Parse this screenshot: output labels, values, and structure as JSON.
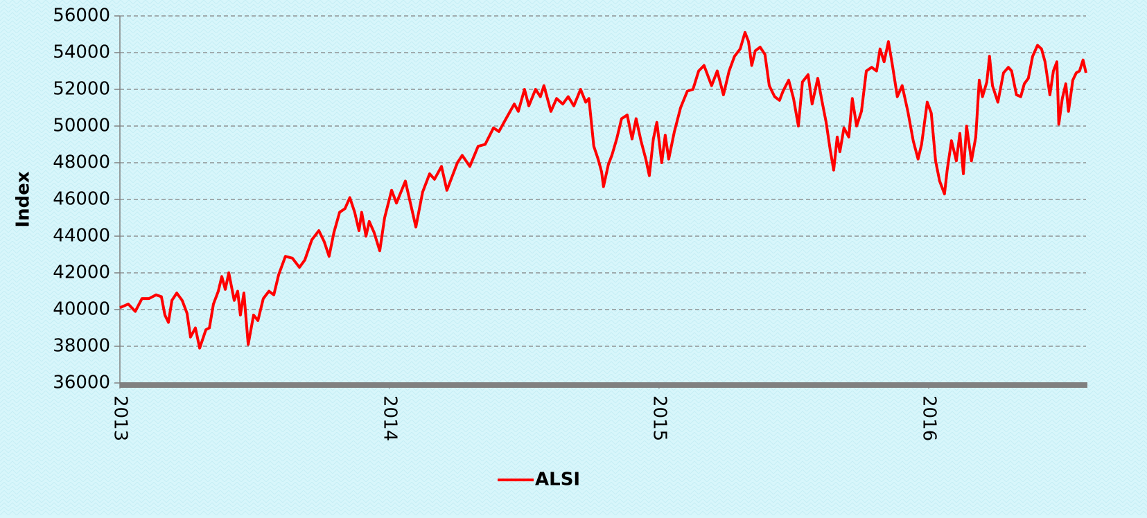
{
  "chart_data": {
    "type": "line",
    "y_label": "Index",
    "x": [
      2013.0,
      2013.031,
      2013.057,
      2013.082,
      2013.108,
      2013.134,
      2013.154,
      2013.167,
      2013.18,
      2013.193,
      2013.211,
      2013.231,
      2013.249,
      2013.262,
      2013.28,
      2013.296,
      2013.319,
      2013.332,
      2013.347,
      2013.365,
      2013.378,
      2013.391,
      2013.404,
      2013.424,
      2013.437,
      2013.447,
      2013.46,
      2013.476,
      2013.496,
      2013.512,
      2013.532,
      2013.553,
      2013.571,
      2013.589,
      2013.614,
      2013.64,
      2013.666,
      2013.686,
      2013.712,
      2013.738,
      2013.758,
      2013.776,
      2013.794,
      2013.815,
      2013.835,
      2013.853,
      2013.871,
      2013.887,
      2013.897,
      2013.913,
      2013.925,
      2013.943,
      2013.964,
      2013.982,
      2014.008,
      2014.026,
      2014.059,
      2014.098,
      2014.123,
      2014.149,
      2014.167,
      2014.193,
      2014.213,
      2014.252,
      2014.27,
      2014.298,
      2014.329,
      2014.355,
      2014.386,
      2014.406,
      2014.44,
      2014.463,
      2014.478,
      2014.501,
      2014.517,
      2014.542,
      2014.56,
      2014.573,
      2014.599,
      2014.62,
      2014.643,
      2014.663,
      2014.684,
      2014.709,
      2014.728,
      2014.74,
      2014.758,
      2014.774,
      2014.787,
      2014.794,
      2014.812,
      2014.825,
      2014.843,
      2014.861,
      2014.882,
      2014.9,
      2014.915,
      2014.933,
      2014.951,
      2014.964,
      2014.979,
      2014.992,
      2015.01,
      2015.023,
      2015.036,
      2015.057,
      2015.08,
      2015.105,
      2015.126,
      2015.147,
      2015.167,
      2015.195,
      2015.216,
      2015.239,
      2015.26,
      2015.28,
      2015.301,
      2015.319,
      2015.332,
      2015.344,
      2015.357,
      2015.375,
      2015.393,
      2015.409,
      2015.429,
      2015.447,
      2015.46,
      2015.481,
      2015.499,
      2015.517,
      2015.532,
      2015.553,
      2015.568,
      2015.589,
      2015.604,
      2015.62,
      2015.635,
      2015.648,
      2015.661,
      2015.671,
      2015.686,
      2015.704,
      2015.717,
      2015.733,
      2015.751,
      2015.769,
      2015.789,
      2015.807,
      2015.82,
      2015.835,
      2015.851,
      2015.866,
      2015.884,
      2015.902,
      2015.923,
      2015.943,
      2015.961,
      2015.974,
      2015.995,
      2016.01,
      2016.026,
      2016.041,
      2016.059,
      2016.069,
      2016.085,
      2016.103,
      2016.116,
      2016.129,
      2016.141,
      2016.159,
      2016.175,
      2016.188,
      2016.2,
      2016.216,
      2016.226,
      2016.237,
      2016.257,
      2016.278,
      2016.296,
      2016.308,
      2016.326,
      2016.342,
      2016.355,
      2016.37,
      2016.386,
      2016.404,
      2016.419,
      2016.432,
      2016.45,
      2016.463,
      2016.476,
      2016.483,
      2016.496,
      2016.509,
      2016.519,
      2016.535,
      2016.548,
      2016.56,
      2016.573,
      2016.584
    ],
    "series": [
      {
        "name": "ALSI",
        "color": "#ff0000",
        "values": [
          40100,
          40300,
          39900,
          40600,
          40600,
          40800,
          40700,
          39700,
          39300,
          40500,
          40900,
          40500,
          39800,
          38500,
          39000,
          37900,
          38900,
          39000,
          40300,
          41000,
          41800,
          41100,
          42000,
          40500,
          41000,
          39700,
          40900,
          38100,
          39700,
          39400,
          40600,
          41000,
          40800,
          41900,
          42900,
          42800,
          42300,
          42700,
          43800,
          44300,
          43700,
          42900,
          44200,
          45300,
          45500,
          46100,
          45300,
          44300,
          45300,
          44000,
          44800,
          44200,
          43200,
          45000,
          46500,
          45800,
          47000,
          44500,
          46400,
          47400,
          47100,
          47800,
          46500,
          48000,
          48400,
          47800,
          48900,
          49000,
          49900,
          49700,
          50600,
          51200,
          50800,
          52000,
          51100,
          52000,
          51600,
          52200,
          50800,
          51500,
          51200,
          51600,
          51100,
          52000,
          51300,
          51500,
          48900,
          48200,
          47500,
          46700,
          47900,
          48400,
          49300,
          50400,
          50600,
          49300,
          50400,
          49200,
          48200,
          47300,
          49300,
          50200,
          48000,
          49500,
          48200,
          49700,
          51000,
          51900,
          52000,
          53000,
          53300,
          52200,
          53000,
          51700,
          53000,
          53800,
          54200,
          55100,
          54600,
          53300,
          54100,
          54300,
          53900,
          52200,
          51600,
          51400,
          51900,
          52500,
          51500,
          50000,
          52400,
          52800,
          51200,
          52600,
          51400,
          50200,
          48700,
          47600,
          49400,
          48600,
          49900,
          49400,
          51500,
          50000,
          50800,
          53000,
          53200,
          53000,
          54200,
          53500,
          54600,
          53300,
          51600,
          52200,
          50800,
          49200,
          48200,
          49000,
          51300,
          50700,
          48100,
          47000,
          46300,
          47600,
          49200,
          48100,
          49600,
          47400,
          50000,
          48100,
          49400,
          52500,
          51600,
          52400,
          53800,
          52200,
          51300,
          52900,
          53200,
          53000,
          51700,
          51600,
          52300,
          52600,
          53800,
          54400,
          54200,
          53500,
          51700,
          53000,
          53500,
          50100,
          51500,
          52300,
          50800,
          52500,
          52900,
          53000,
          53600,
          52900
        ]
      }
    ],
    "xlim": [
      2013.0,
      2016.584
    ],
    "xticks": [
      2013,
      2014,
      2015,
      2016
    ],
    "ylim": [
      36000,
      56000
    ],
    "yticks": [
      36000,
      38000,
      40000,
      42000,
      44000,
      46000,
      48000,
      50000,
      52000,
      54000,
      56000
    ],
    "grid": true,
    "legend": "bottom"
  }
}
